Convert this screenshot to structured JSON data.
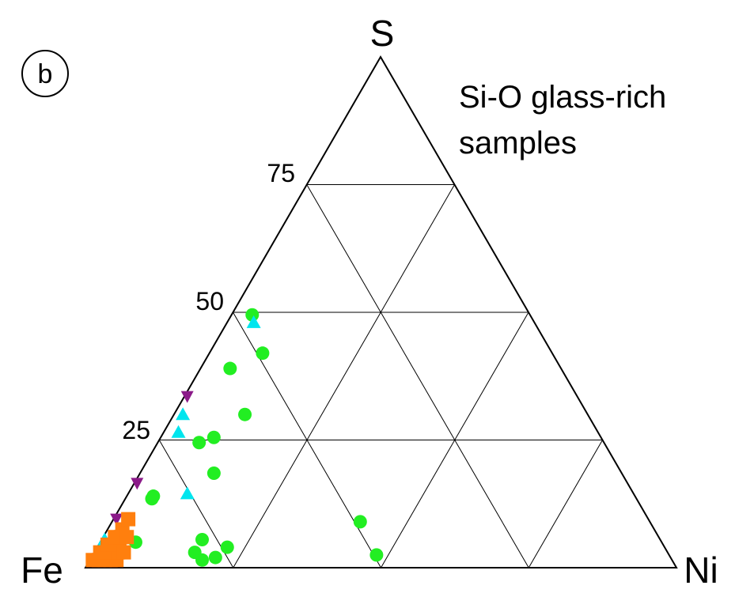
{
  "panel_label": "b",
  "chart_data": {
    "type": "scatter",
    "subtype": "ternary",
    "vertices": {
      "top": "S",
      "left": "Fe",
      "right": "Ni"
    },
    "gridlines_at": [
      25,
      50,
      75
    ],
    "tick_labels": [
      "25",
      "50",
      "75"
    ],
    "grid": true,
    "annotation": [
      "Si-O glass-rich",
      "samples"
    ],
    "series": [
      {
        "marker": "circle",
        "color": "#22ee22",
        "points": [
          {
            "S": 49.5,
            "Ni": 3.5
          },
          {
            "S": 42,
            "Ni": 9
          },
          {
            "S": 39,
            "Ni": 5
          },
          {
            "S": 30,
            "Ni": 12
          },
          {
            "S": 25.5,
            "Ni": 9
          },
          {
            "S": 24.5,
            "Ni": 7
          },
          {
            "S": 18.5,
            "Ni": 12.5
          },
          {
            "S": 14,
            "Ni": 4.5
          },
          {
            "S": 13.5,
            "Ni": 4.5
          },
          {
            "S": 9,
            "Ni": 42
          },
          {
            "S": 5,
            "Ni": 6
          },
          {
            "S": 5.5,
            "Ni": 17
          },
          {
            "S": 3,
            "Ni": 17
          },
          {
            "S": 1.5,
            "Ni": 19
          },
          {
            "S": 2,
            "Ni": 21
          },
          {
            "S": 4,
            "Ni": 22
          },
          {
            "S": 2.5,
            "Ni": 48
          }
        ]
      },
      {
        "marker": "triangle-up",
        "color": "#00e5ee",
        "points": [
          {
            "S": 48,
            "Ni": 4.5
          },
          {
            "S": 30,
            "Ni": 1.5
          },
          {
            "S": 26.5,
            "Ni": 2.5
          },
          {
            "S": 14.5,
            "Ni": 10
          },
          {
            "S": 7.5,
            "Ni": 2
          },
          {
            "S": 5.5,
            "Ni": 0.5
          },
          {
            "S": 4.5,
            "Ni": 1
          }
        ]
      },
      {
        "marker": "triangle-down",
        "color": "#8b1a89",
        "points": [
          {
            "S": 33.5,
            "Ni": 0.5
          },
          {
            "S": 16.5,
            "Ni": 0.5
          },
          {
            "S": 9.5,
            "Ni": 0.5
          }
        ]
      },
      {
        "marker": "square",
        "color": "#ff7f0e",
        "points": [
          {
            "S": 1.5,
            "Ni": 0.5
          },
          {
            "S": 1.5,
            "Ni": 1.5
          },
          {
            "S": 1.5,
            "Ni": 2.5
          },
          {
            "S": 1.5,
            "Ni": 3.5
          },
          {
            "S": 1.5,
            "Ni": 4.5
          },
          {
            "S": 3,
            "Ni": 1
          },
          {
            "S": 3,
            "Ni": 2
          },
          {
            "S": 3,
            "Ni": 3
          },
          {
            "S": 3,
            "Ni": 4
          },
          {
            "S": 4.5,
            "Ni": 1.5
          },
          {
            "S": 4.5,
            "Ni": 2.5
          },
          {
            "S": 4.5,
            "Ni": 3.5
          },
          {
            "S": 6,
            "Ni": 2
          },
          {
            "S": 6,
            "Ni": 3
          },
          {
            "S": 7.5,
            "Ni": 2.5
          },
          {
            "S": 9.5,
            "Ni": 2.5
          },
          {
            "S": 6,
            "Ni": 4
          },
          {
            "S": 3,
            "Ni": 5
          }
        ]
      }
    ]
  }
}
